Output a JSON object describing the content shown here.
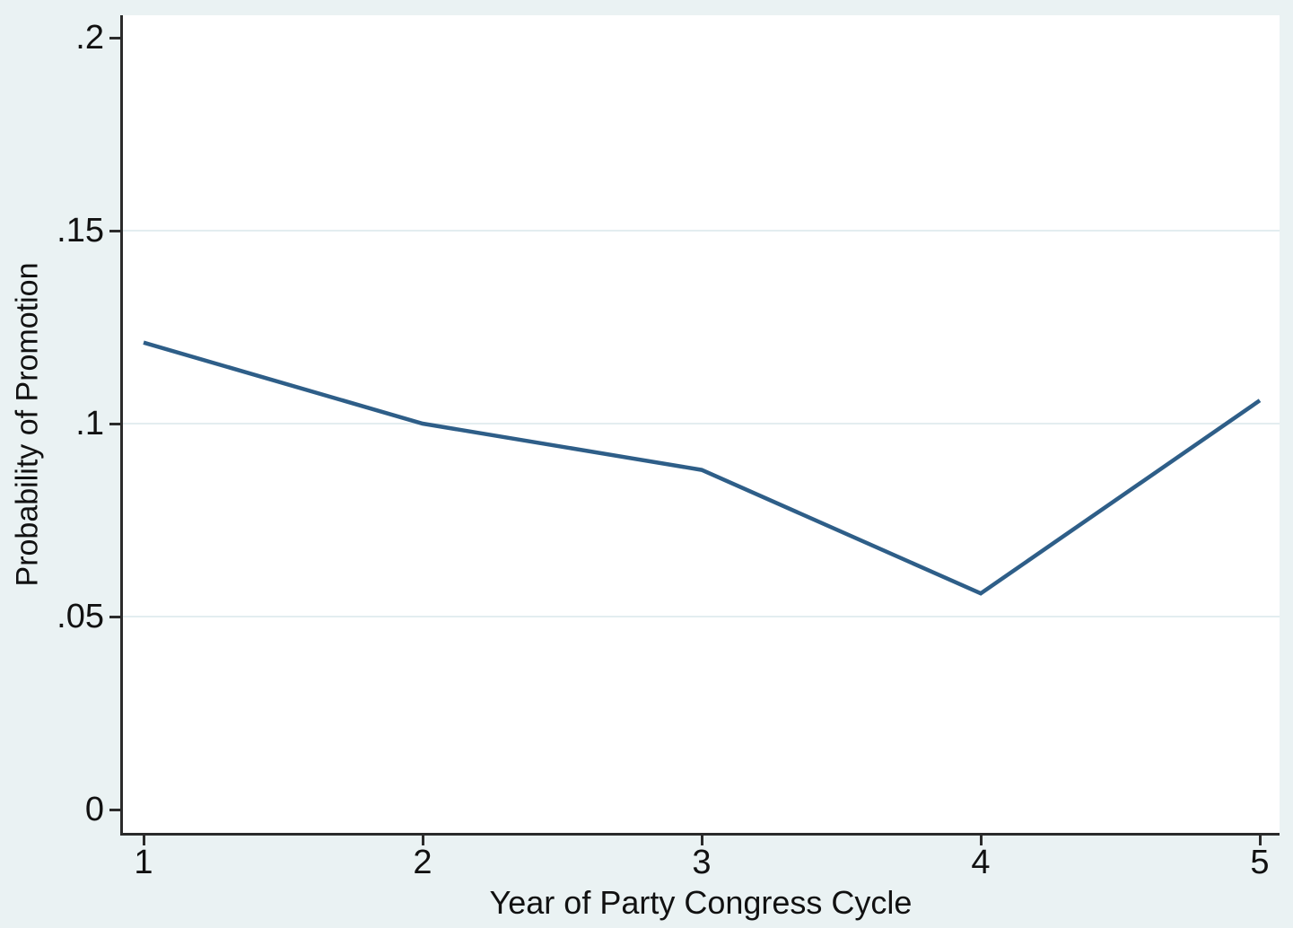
{
  "chart_data": {
    "type": "line",
    "title": "",
    "xlabel": "Year of Party Congress Cycle",
    "ylabel": "Probability of Promotion",
    "x": [
      1,
      2,
      3,
      4,
      5
    ],
    "series": [
      {
        "name": "Probability of Promotion",
        "values": [
          0.121,
          0.1,
          0.088,
          0.056,
          0.106
        ]
      }
    ],
    "xlim": [
      1,
      5
    ],
    "ylim": [
      0,
      0.2
    ],
    "x_ticks": [
      {
        "v": 1,
        "label": "1"
      },
      {
        "v": 2,
        "label": "2"
      },
      {
        "v": 3,
        "label": "3"
      },
      {
        "v": 4,
        "label": "4"
      },
      {
        "v": 5,
        "label": "5"
      }
    ],
    "y_ticks": [
      {
        "v": 0,
        "label": "0"
      },
      {
        "v": 0.05,
        "label": ".05"
      },
      {
        "v": 0.1,
        "label": ".1"
      },
      {
        "v": 0.15,
        "label": ".15"
      },
      {
        "v": 0.2,
        "label": ".2"
      }
    ],
    "y_gridlines": [
      0.05,
      0.1,
      0.15
    ],
    "grid": "horizontal",
    "legend": "none"
  },
  "colors": {
    "background": "#eaf2f3",
    "plot_background": "#ffffff",
    "gridline": "#e3edf0",
    "axis": "#2b2b2b",
    "text": "#111111",
    "line": "#2e5e88"
  }
}
